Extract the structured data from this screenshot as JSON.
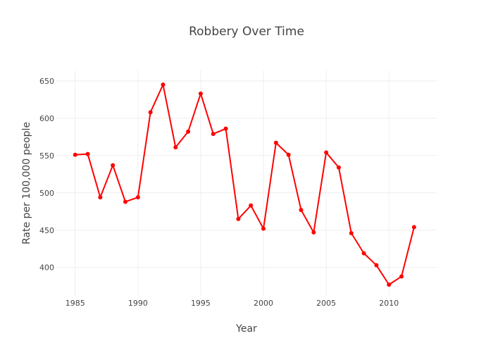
{
  "chart_data": {
    "type": "line",
    "title": "Robbery Over Time",
    "xlabel": "Year",
    "ylabel": "Rate per 100,000 people",
    "xlim": [
      1983.5,
      2013.8
    ],
    "ylim": [
      362,
      664
    ],
    "x_ticks": [
      1985,
      1990,
      1995,
      2000,
      2005,
      2010
    ],
    "y_ticks": [
      400,
      450,
      500,
      550,
      600,
      650
    ],
    "grid": true,
    "legend": "none",
    "series": [
      {
        "color": "#ff0000",
        "x": [
          1985,
          1986,
          1987,
          1988,
          1989,
          1990,
          1991,
          1992,
          1993,
          1994,
          1995,
          1996,
          1997,
          1998,
          1999,
          2000,
          2001,
          2002,
          2003,
          2004,
          2005,
          2006,
          2007,
          2008,
          2009,
          2010,
          2011,
          2012
        ],
        "y": [
          551,
          552,
          494,
          537,
          488,
          494,
          608,
          645,
          561,
          582,
          633,
          579,
          586,
          465,
          483,
          452,
          567,
          551,
          477,
          447,
          554,
          534,
          446,
          419,
          403,
          377,
          388,
          454
        ]
      }
    ]
  }
}
